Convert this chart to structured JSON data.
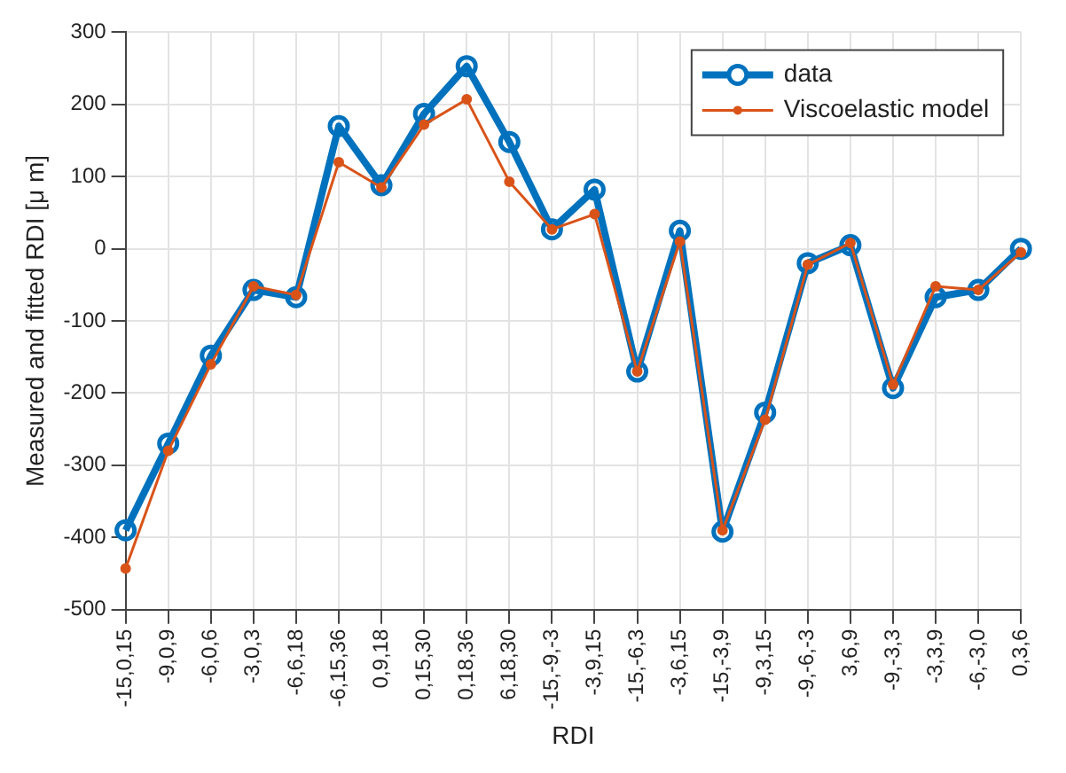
{
  "chart_data": {
    "type": "line",
    "xlabel": "RDI",
    "ylabel": "Measured and fitted RDI [μ m]",
    "categories": [
      "-15,0,15",
      "-9,0,9",
      "-6,0,6",
      "-3,0,3",
      "-6,6,18",
      "-6,15,36",
      "0,9,18",
      "0,15,30",
      "0,18,36",
      "6,18,30",
      "-15,-9,-3",
      "-3,9,15",
      "-15,-6,3",
      "-3,6,15",
      "-15,-3,9",
      "-9,3,15",
      "-9,-6,-3",
      "3,6,9",
      "-9,-3,3",
      "-3,3,9",
      "-6,-3,0",
      "0,3,6"
    ],
    "series": [
      {
        "name": "data",
        "color": "#0072bd",
        "marker": "circle",
        "values": [
          -390,
          -270,
          -148,
          -57,
          -67,
          170,
          88,
          187,
          253,
          148,
          27,
          82,
          -170,
          25,
          -392,
          -227,
          -20,
          5,
          -193,
          -67,
          -57,
          0
        ]
      },
      {
        "name": "Viscoelastic model",
        "color": "#d95319",
        "marker": "circle",
        "values": [
          -443,
          -280,
          -160,
          -52,
          -64,
          120,
          85,
          172,
          207,
          93,
          27,
          48,
          -170,
          10,
          -390,
          -237,
          -22,
          8,
          -188,
          -52,
          -57,
          -5
        ]
      }
    ],
    "ylim": [
      -500,
      300
    ],
    "yticks": [
      -500,
      -400,
      -300,
      -200,
      -100,
      0,
      100,
      200,
      300
    ],
    "grid": true,
    "legend": "top right"
  }
}
